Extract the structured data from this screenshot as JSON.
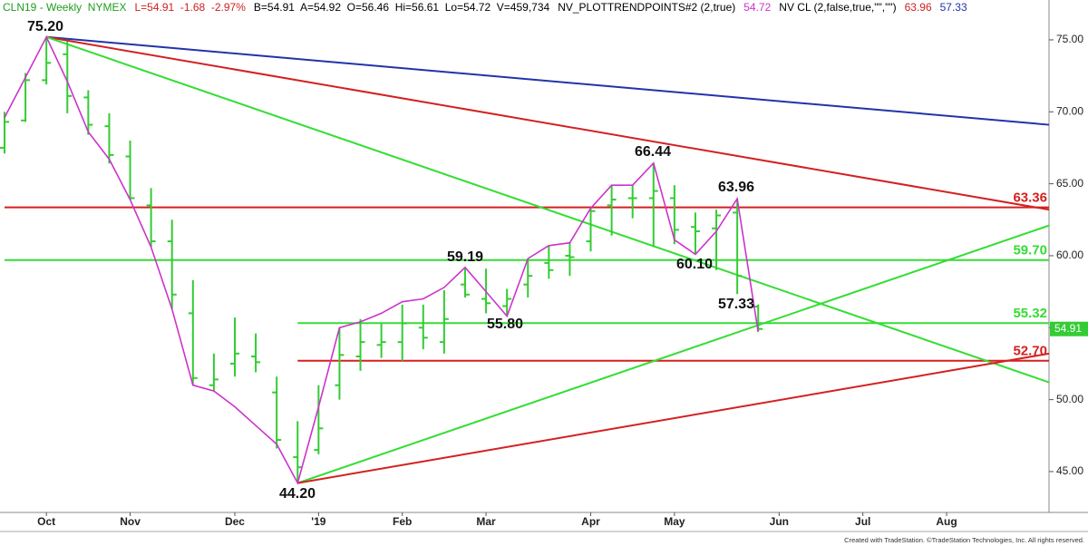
{
  "chart_data": {
    "type": "ohlc",
    "header": [
      {
        "text": "CLN19 - Weekly  NYMEX",
        "color": "#1e9e1e"
      },
      {
        "text": "L=54.91  -1.68  -2.97%",
        "color": "#cc2222"
      },
      {
        "text": "B=54.91  A=54.92  O=56.46  Hi=56.61  Lo=54.72  V=459,734",
        "color": "#000000"
      },
      {
        "text": "NV_PLOTTRENDPOINTS#2 (2,true)",
        "color": "#000000"
      },
      {
        "text": "54.72",
        "color": "#cc33cc"
      },
      {
        "text": "NV CL (2,false,true,\"\",\"\")",
        "color": "#000000"
      },
      {
        "text": "63.96",
        "color": "#cc2222"
      },
      {
        "text": "57.33",
        "color": "#2233aa"
      }
    ],
    "footer": "Created with TradeStation. ©TradeStation Technologies, Inc. All rights reserved.",
    "categories": [
      null,
      null,
      "Oct",
      null,
      null,
      null,
      "Nov",
      null,
      null,
      null,
      null,
      "Dec",
      null,
      null,
      null,
      "'19",
      null,
      null,
      null,
      "Feb",
      null,
      null,
      null,
      "Mar",
      null,
      null,
      null,
      null,
      "Apr",
      null,
      null,
      null,
      "May",
      null,
      null,
      null,
      null,
      "Jun",
      null,
      null,
      null,
      "Jul",
      null,
      null,
      null,
      "Aug",
      null,
      null,
      null,
      null
    ],
    "bar_color": "#33cc33",
    "open": [
      67.5,
      69.4,
      72.2,
      74.0,
      71.0,
      69.0,
      66.9,
      63.5,
      61.0,
      56.0,
      51.0,
      52.5,
      53.0,
      50.5,
      46.0,
      46.5,
      51.0,
      53.0,
      53.8,
      54.0,
      55.0,
      54.0,
      58.0,
      57.0,
      56.5,
      58.0,
      59.5,
      60.0,
      61.0,
      63.5,
      64.0,
      64.0,
      64.0,
      62.0,
      61.9,
      63.0,
      56.46,
      null,
      null,
      null,
      null,
      null,
      null,
      null,
      null,
      null,
      null,
      null,
      null,
      null
    ],
    "high": [
      70.0,
      72.7,
      75.2,
      74.9,
      71.5,
      69.9,
      68.0,
      64.7,
      62.5,
      58.3,
      53.2,
      55.7,
      54.6,
      51.6,
      48.5,
      51.0,
      55.0,
      55.6,
      55.3,
      56.6,
      56.6,
      57.6,
      59.19,
      59.1,
      57.7,
      59.8,
      60.7,
      60.9,
      63.3,
      64.9,
      64.9,
      66.44,
      64.9,
      63.0,
      63.2,
      63.96,
      56.61,
      null,
      null,
      null,
      null,
      null,
      null,
      null,
      null,
      null,
      null,
      null,
      null,
      null
    ],
    "low": [
      67.1,
      69.3,
      71.9,
      69.9,
      68.4,
      66.4,
      63.9,
      60.6,
      56.3,
      51.0,
      50.6,
      51.6,
      51.9,
      46.6,
      44.2,
      46.2,
      50.0,
      52.0,
      52.9,
      52.7,
      53.5,
      53.2,
      57.1,
      56.0,
      55.8,
      57.1,
      58.4,
      58.6,
      60.3,
      61.4,
      62.6,
      60.6,
      60.8,
      60.1,
      59.0,
      57.33,
      54.72,
      null,
      null,
      null,
      null,
      null,
      null,
      null,
      null,
      null,
      null,
      null,
      null,
      null
    ],
    "close": [
      69.3,
      72.2,
      73.4,
      71.1,
      69.1,
      67.0,
      64.0,
      61.0,
      57.3,
      51.5,
      51.4,
      53.2,
      52.6,
      47.2,
      45.3,
      48.0,
      53.1,
      54.0,
      54.0,
      55.3,
      54.3,
      55.6,
      57.3,
      56.7,
      57.0,
      58.6,
      59.0,
      59.9,
      63.1,
      63.9,
      64.0,
      64.5,
      61.8,
      61.7,
      62.8,
      58.6,
      54.91,
      null,
      null,
      null,
      null,
      null,
      null,
      null,
      null,
      null,
      null,
      null,
      null,
      null
    ],
    "zigzag": {
      "color": "#cc33cc",
      "values": [
        69.6,
        72.4,
        75.2,
        72.1,
        68.6,
        66.7,
        63.9,
        60.6,
        56.3,
        51.0,
        50.6,
        49.5,
        48.2,
        46.9,
        44.2,
        49.5,
        55.0,
        55.4,
        56.0,
        56.8,
        57.0,
        57.8,
        59.19,
        57.5,
        55.8,
        59.8,
        60.7,
        60.9,
        63.3,
        64.9,
        64.9,
        66.44,
        61.1,
        60.1,
        61.7,
        63.96,
        54.72,
        null,
        null,
        null,
        null,
        null,
        null,
        null,
        null,
        null,
        null,
        null,
        null,
        null
      ]
    },
    "annotations": [
      "75.20",
      "44.20",
      "59.19",
      "55.80",
      "66.44",
      "60.10",
      "63.96",
      "57.33"
    ],
    "hlines": [
      {
        "value": 63.36,
        "label": "63.36",
        "color": "#d42020"
      },
      {
        "value": 59.7,
        "label": "59.70",
        "color": "#33dd33"
      },
      {
        "value": 55.32,
        "label": "55.32",
        "color": "#33dd33"
      },
      {
        "value": 52.7,
        "label": "52.70",
        "color": "#d42020"
      }
    ],
    "trendlines": [
      {
        "color": "#2233aa",
        "values": [
          75.2,
          69.1
        ]
      },
      {
        "color": "#d42020",
        "values": [
          75.2,
          63.2
        ]
      },
      {
        "color": "#33dd33",
        "values": [
          75.2,
          51.2
        ]
      },
      {
        "color": "#33dd33",
        "values": [
          44.2,
          62.1
        ]
      },
      {
        "color": "#d42020",
        "values": [
          44.2,
          53.2
        ]
      }
    ],
    "last_price": {
      "value": 54.91,
      "label": "54.91",
      "color": "#33cc33"
    },
    "ylim": [
      42.16,
      77.77
    ],
    "yticks": [
      {
        "value": 45,
        "label": "45.00"
      },
      {
        "value": 50,
        "label": "50.00"
      },
      {
        "value": 55,
        "label": "55.00"
      },
      {
        "value": 60,
        "label": "60.00"
      },
      {
        "value": 65,
        "label": "65.00"
      },
      {
        "value": 70,
        "label": "70.00"
      },
      {
        "value": 75,
        "label": "75.00"
      }
    ]
  }
}
